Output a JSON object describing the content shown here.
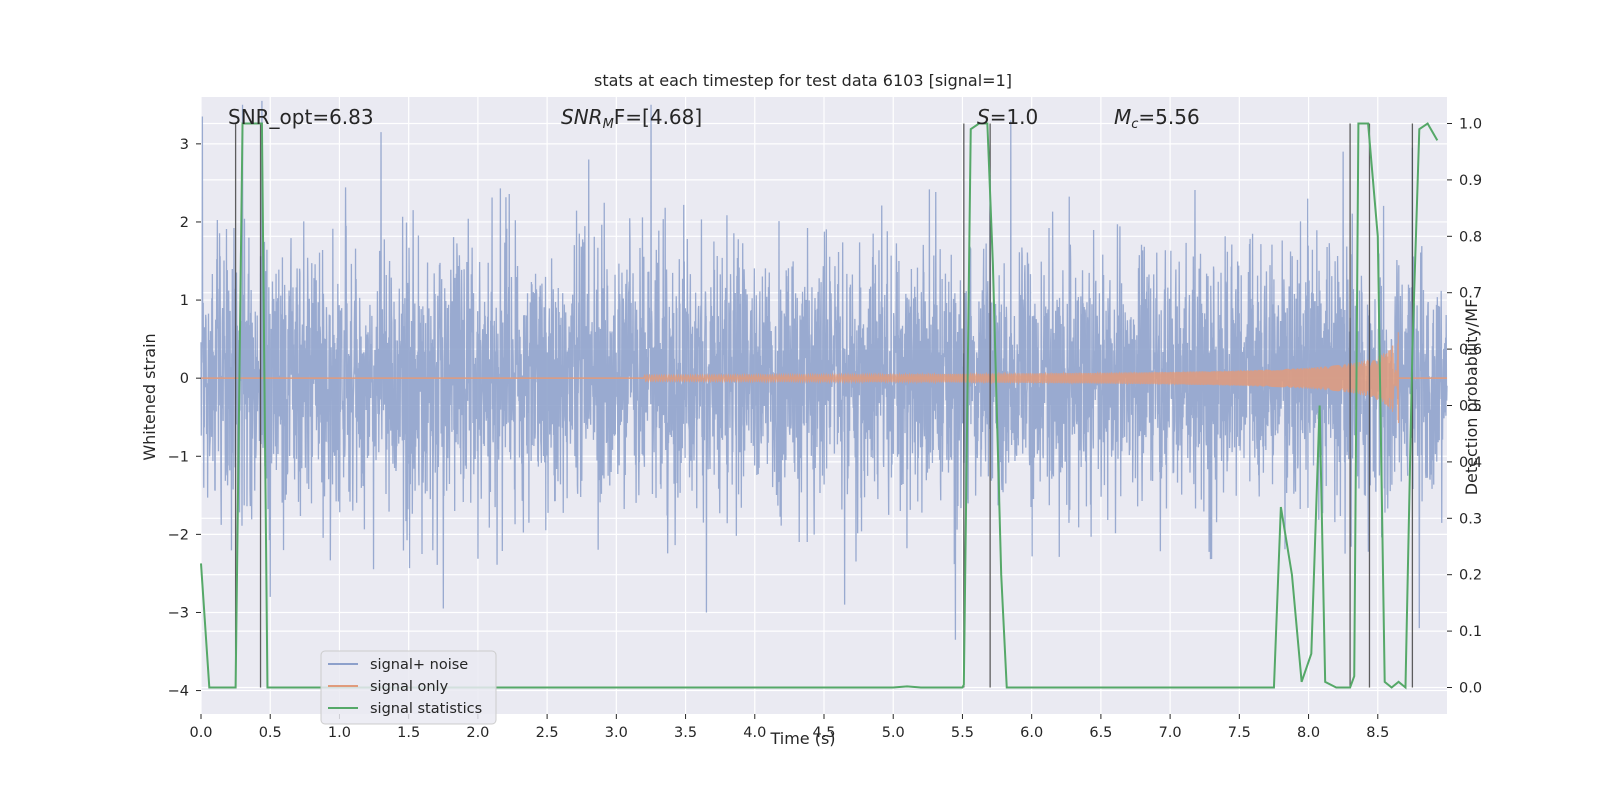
{
  "chart_data": {
    "type": "line",
    "title": "stats at each timestep for test data 6103 [signal=1]",
    "xlabel": "Time (s)",
    "ylabel": "Whitened strain",
    "ylabel_right": "Detection probability/MF",
    "xlim": [
      0,
      9.0
    ],
    "ylim": [
      -4.3,
      3.6
    ],
    "ylim_right": [
      -0.047,
      1.047
    ],
    "xticks": [
      "0.0",
      "0.5",
      "1.0",
      "1.5",
      "2.0",
      "2.5",
      "3.0",
      "3.5",
      "4.0",
      "4.5",
      "5.0",
      "5.5",
      "6.0",
      "6.5",
      "7.0",
      "7.5",
      "8.0",
      "8.5"
    ],
    "yticks": [
      "3",
      "2",
      "1",
      "0",
      "−1",
      "−2",
      "−3",
      "−4"
    ],
    "yticks_right": [
      "1.0",
      "0.9",
      "0.8",
      "0.7",
      "0.6",
      "0.5",
      "0.4",
      "0.3",
      "0.2",
      "0.1",
      "0.0"
    ],
    "grid": true,
    "legend_position": "lower-left",
    "annotations": {
      "snr_opt": "SNR_opt=6.83",
      "snr_mf_sym": "SNR",
      "snr_mf_sub": "M",
      "snr_mf_rest": "F=[4.68]",
      "s_sym": "S",
      "s_rest": "=1.0",
      "mc_sym": "M",
      "mc_sub": "c",
      "mc_rest": "=5.56"
    },
    "series": [
      {
        "name": "signal+ noise",
        "color": "#8da0cb",
        "kind": "noise",
        "envelope_typical": 2.0,
        "peaks": [
          [
            0.01,
            3.35
          ],
          [
            0.3,
            3.5
          ],
          [
            0.44,
            3.55
          ],
          [
            1.3,
            3.15
          ],
          [
            2.8,
            2.8
          ],
          [
            3.25,
            3.5
          ],
          [
            5.7,
            2.6
          ],
          [
            5.85,
            3.3
          ],
          [
            8.25,
            2.9
          ],
          [
            8.75,
            2.95
          ],
          [
            0.5,
            -2.8
          ],
          [
            1.75,
            -2.95
          ],
          [
            3.65,
            -3.0
          ],
          [
            4.65,
            -2.9
          ],
          [
            5.45,
            -3.35
          ],
          [
            8.8,
            -3.2
          ]
        ]
      },
      {
        "name": "signal only",
        "color": "#e09b7c",
        "kind": "chirp",
        "start_x": 3.2,
        "end_x": 8.65,
        "max_amplitude": 0.6
      },
      {
        "name": "signal statistics",
        "color": "#55a868",
        "axis": "right",
        "x": [
          0.0,
          0.06,
          0.2,
          0.25,
          0.3,
          0.42,
          0.44,
          0.48,
          0.56,
          1.0,
          2.0,
          3.0,
          4.0,
          5.0,
          5.1,
          5.2,
          5.5,
          5.51,
          5.56,
          5.62,
          5.68,
          5.72,
          5.78,
          5.82,
          6.5,
          7.0,
          7.5,
          7.75,
          7.8,
          7.88,
          7.95,
          8.02,
          8.08,
          8.12,
          8.2,
          8.3,
          8.33,
          8.36,
          8.43,
          8.5,
          8.55,
          8.6,
          8.65,
          8.7,
          8.75,
          8.8,
          8.86,
          8.93
        ],
        "y": [
          0.22,
          0.0,
          0.0,
          0.0,
          1.0,
          1.0,
          1.0,
          0.0,
          0.0,
          0.0,
          0.0,
          0.0,
          0.0,
          0.0,
          0.002,
          0.0,
          0.0,
          0.005,
          0.99,
          1.0,
          1.0,
          0.75,
          0.2,
          0.0,
          0.0,
          0.0,
          0.0,
          0.0,
          0.32,
          0.2,
          0.01,
          0.06,
          0.5,
          0.01,
          0.0,
          0.0,
          0.02,
          1.0,
          1.0,
          0.8,
          0.01,
          0.0,
          0.01,
          0.0,
          0.6,
          0.99,
          1.0,
          0.97
        ]
      }
    ],
    "vlines": [
      0.25,
      0.43,
      5.51,
      5.7,
      8.3,
      8.44,
      8.75
    ]
  }
}
